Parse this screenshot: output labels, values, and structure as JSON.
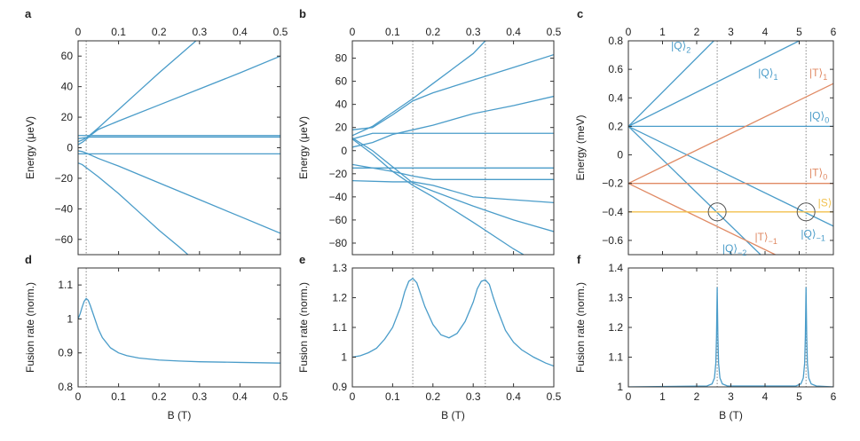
{
  "colors": {
    "blue": "#4a9cc9",
    "orange": "#e08a64",
    "yellow": "#f2c14e",
    "axis": "#333333",
    "guide": "#888888"
  },
  "chart_data": [
    {
      "id": "a",
      "panel_letter": "a",
      "type": "line",
      "ylabel": "Energy (μeV)",
      "xlim": [
        0,
        0.5
      ],
      "ylim": [
        -70,
        70
      ],
      "xticks": [
        0,
        0.1,
        0.2,
        0.3,
        0.4,
        0.5
      ],
      "xtick_labels": [
        "0",
        "0.1",
        "0.2",
        "0.3",
        "0.4",
        "0.5"
      ],
      "xticks_top": true,
      "yticks": [
        -60,
        -40,
        -20,
        0,
        20,
        40,
        60
      ],
      "ytick_labels": [
        "−60",
        "−40",
        "−20",
        "0",
        "20",
        "40",
        "60"
      ],
      "guides": [
        0.02
      ],
      "series": [
        {
          "name": "upper steep",
          "color": "blue",
          "x": [
            0,
            0.01,
            0.02,
            0.03,
            0.05,
            0.1,
            0.15,
            0.2,
            0.25,
            0.3
          ],
          "y": [
            4,
            5,
            6.5,
            8.5,
            13,
            25,
            37,
            49,
            60.5,
            72
          ]
        },
        {
          "name": "upper shallow",
          "color": "blue",
          "x": [
            0,
            0.01,
            0.02,
            0.03,
            0.05,
            0.1,
            0.2,
            0.3,
            0.4,
            0.5
          ],
          "y": [
            2,
            3.5,
            5.5,
            8,
            12,
            17.5,
            28,
            38.5,
            49,
            60
          ]
        },
        {
          "name": "flat 8",
          "color": "blue",
          "x": [
            0,
            0.5
          ],
          "y": [
            8,
            8
          ]
        },
        {
          "name": "flat 6",
          "color": "blue",
          "x": [
            0,
            0.03,
            0.5
          ],
          "y": [
            6,
            7,
            7
          ]
        },
        {
          "name": "flat -4",
          "color": "blue",
          "x": [
            0,
            0.5
          ],
          "y": [
            -4,
            -4
          ]
        },
        {
          "name": "lower shallow",
          "color": "blue",
          "x": [
            0,
            0.01,
            0.02,
            0.05,
            0.1,
            0.2,
            0.3,
            0.4,
            0.5
          ],
          "y": [
            -2,
            -2.5,
            -3.5,
            -7,
            -12,
            -23,
            -34,
            -45,
            -56
          ]
        },
        {
          "name": "lower steep",
          "color": "blue",
          "x": [
            0,
            0.01,
            0.02,
            0.05,
            0.1,
            0.15,
            0.2,
            0.25,
            0.28
          ],
          "y": [
            -10,
            -11,
            -13,
            -19,
            -30,
            -42,
            -54,
            -65,
            -72
          ]
        }
      ]
    },
    {
      "id": "b",
      "panel_letter": "b",
      "type": "line",
      "ylabel": "Energy (μeV)",
      "xlim": [
        0,
        0.5
      ],
      "ylim": [
        -90,
        95
      ],
      "xticks": [
        0,
        0.1,
        0.2,
        0.3,
        0.4,
        0.5
      ],
      "xtick_labels": [
        "0",
        "0.1",
        "0.2",
        "0.3",
        "0.4",
        "0.5"
      ],
      "xticks_top": true,
      "yticks": [
        -80,
        -60,
        -40,
        -20,
        0,
        20,
        40,
        60,
        80
      ],
      "ytick_labels": [
        "−80",
        "−60",
        "−40",
        "−20",
        "0",
        "20",
        "40",
        "60",
        "80"
      ],
      "guides": [
        0.15,
        0.33
      ],
      "series": [
        {
          "name": "steep up",
          "color": "blue",
          "x": [
            0,
            0.05,
            0.1,
            0.15,
            0.2,
            0.25,
            0.3,
            0.33
          ],
          "y": [
            13,
            21,
            33,
            45,
            58,
            71,
            84,
            95
          ]
        },
        {
          "name": "mid up",
          "color": "blue",
          "x": [
            0,
            0.05,
            0.1,
            0.15,
            0.2,
            0.3,
            0.4,
            0.5
          ],
          "y": [
            18,
            20,
            31,
            43,
            50,
            61,
            72,
            83
          ]
        },
        {
          "name": "low up",
          "color": "blue",
          "x": [
            0,
            0.05,
            0.1,
            0.15,
            0.2,
            0.3,
            0.4,
            0.5
          ],
          "y": [
            3,
            7,
            14,
            18,
            22,
            32,
            39,
            47
          ]
        },
        {
          "name": "flat 15",
          "color": "blue",
          "x": [
            0,
            0.05,
            0.5
          ],
          "y": [
            10,
            15,
            15
          ]
        },
        {
          "name": "flat -15",
          "color": "blue",
          "x": [
            0,
            0.5
          ],
          "y": [
            -15,
            -15
          ]
        },
        {
          "name": "branch -25",
          "color": "blue",
          "x": [
            0,
            0.1,
            0.15,
            0.2,
            0.3,
            0.5
          ],
          "y": [
            -12,
            -18,
            -22,
            -25,
            -25,
            -25
          ]
        },
        {
          "name": "flat -27",
          "color": "blue",
          "x": [
            0,
            0.1,
            0.15,
            0.2,
            0.3,
            0.5
          ],
          "y": [
            -26,
            -27,
            -27,
            -30,
            -40,
            -45
          ]
        },
        {
          "name": "down mid",
          "color": "blue",
          "x": [
            0,
            0.05,
            0.1,
            0.15,
            0.2,
            0.3,
            0.4,
            0.5
          ],
          "y": [
            11,
            0,
            -14,
            -28,
            -35,
            -48,
            -60,
            -70
          ]
        },
        {
          "name": "down steep",
          "color": "blue",
          "x": [
            0,
            0.05,
            0.1,
            0.15,
            0.2,
            0.3,
            0.4,
            0.45
          ],
          "y": [
            10,
            -3,
            -18,
            -30,
            -40,
            -62,
            -85,
            -95
          ]
        }
      ]
    },
    {
      "id": "c",
      "panel_letter": "c",
      "type": "line",
      "ylabel": "Energy (meV)",
      "xlim": [
        0,
        6
      ],
      "ylim": [
        -0.7,
        0.8
      ],
      "xticks": [
        0,
        1,
        2,
        3,
        4,
        5,
        6
      ],
      "xtick_labels": [
        "0",
        "1",
        "2",
        "3",
        "4",
        "5",
        "6"
      ],
      "xticks_top": true,
      "yticks": [
        -0.6,
        -0.4,
        -0.2,
        0,
        0.2,
        0.4,
        0.6,
        0.8
      ],
      "ytick_labels": [
        "−0.6",
        "−0.4",
        "−0.2",
        "0",
        "0.2",
        "0.4",
        "0.6",
        "0.8"
      ],
      "guides": [
        2.6,
        5.2
      ],
      "circles": [
        [
          2.6,
          -0.4
        ],
        [
          5.2,
          -0.4
        ]
      ],
      "series": [
        {
          "name": "|Q⟩2",
          "color": "blue",
          "x": [
            0,
            2.5
          ],
          "y": [
            0.2,
            0.8
          ]
        },
        {
          "name": "|Q⟩1",
          "color": "blue",
          "x": [
            0,
            5
          ],
          "y": [
            0.2,
            0.8
          ]
        },
        {
          "name": "|Q⟩0",
          "color": "blue",
          "x": [
            0,
            6
          ],
          "y": [
            0.2,
            0.2
          ]
        },
        {
          "name": "|Q⟩−1",
          "color": "blue",
          "x": [
            0,
            6
          ],
          "y": [
            0.2,
            -0.5
          ]
        },
        {
          "name": "|Q⟩−2",
          "color": "blue",
          "x": [
            0,
            4.3
          ],
          "y": [
            0.2,
            -0.8
          ]
        },
        {
          "name": "|T⟩1",
          "color": "orange",
          "x": [
            0,
            6
          ],
          "y": [
            -0.2,
            0.5
          ]
        },
        {
          "name": "|T⟩0",
          "color": "orange",
          "x": [
            0,
            6
          ],
          "y": [
            -0.2,
            -0.2
          ]
        },
        {
          "name": "|T⟩−1",
          "color": "orange",
          "x": [
            0,
            4.3
          ],
          "y": [
            -0.2,
            -0.7
          ]
        },
        {
          "name": "|S⟩",
          "color": "yellow",
          "x": [
            0,
            6
          ],
          "y": [
            -0.4,
            -0.4
          ]
        }
      ],
      "state_labels": [
        {
          "main": "|Q⟩",
          "sub": "2",
          "x": 1.25,
          "y": 0.74,
          "color": "blue"
        },
        {
          "main": "|Q⟩",
          "sub": "1",
          "x": 3.8,
          "y": 0.55,
          "color": "blue"
        },
        {
          "main": "|T⟩",
          "sub": "1",
          "x": 5.3,
          "y": 0.55,
          "color": "orange"
        },
        {
          "main": "|Q⟩",
          "sub": "0",
          "x": 5.3,
          "y": 0.25,
          "color": "blue"
        },
        {
          "main": "|T⟩",
          "sub": "0",
          "x": 5.3,
          "y": -0.15,
          "color": "orange"
        },
        {
          "main": "|S⟩",
          "sub": "",
          "x": 5.55,
          "y": -0.36,
          "color": "yellow"
        },
        {
          "main": "|Q⟩",
          "sub": "−1",
          "x": 5.05,
          "y": -0.58,
          "color": "blue"
        },
        {
          "main": "|T⟩",
          "sub": "−1",
          "x": 3.7,
          "y": -0.6,
          "color": "orange"
        },
        {
          "main": "|Q⟩",
          "sub": "−2",
          "x": 2.75,
          "y": -0.68,
          "color": "blue"
        }
      ]
    },
    {
      "id": "d",
      "panel_letter": "d",
      "type": "line",
      "ylabel": "Fusion rate (norm.)",
      "xlabel": "B (T)",
      "xlim": [
        0,
        0.5
      ],
      "ylim": [
        0.8,
        1.15
      ],
      "xticks": [
        0,
        0.1,
        0.2,
        0.3,
        0.4,
        0.5
      ],
      "xtick_labels": [
        "0",
        "0.1",
        "0.2",
        "0.3",
        "0.4",
        "0.5"
      ],
      "yticks": [
        0.8,
        0.9,
        1,
        1.1
      ],
      "ytick_labels": [
        "0.8",
        "0.9",
        "1",
        "1.1"
      ],
      "guides": [
        0.02
      ],
      "series": [
        {
          "name": "fusion rate",
          "color": "blue",
          "x": [
            0,
            0.005,
            0.01,
            0.015,
            0.02,
            0.025,
            0.03,
            0.04,
            0.05,
            0.06,
            0.08,
            0.1,
            0.12,
            0.15,
            0.2,
            0.25,
            0.3,
            0.35,
            0.4,
            0.45,
            0.5
          ],
          "y": [
            1.0,
            1.015,
            1.035,
            1.052,
            1.06,
            1.055,
            1.04,
            1.005,
            0.97,
            0.945,
            0.915,
            0.9,
            0.892,
            0.885,
            0.879,
            0.876,
            0.874,
            0.873,
            0.872,
            0.871,
            0.87
          ]
        }
      ]
    },
    {
      "id": "e",
      "panel_letter": "e",
      "type": "line",
      "ylabel": "Fusion rate (norm.)",
      "xlabel": "B (T)",
      "xlim": [
        0,
        0.5
      ],
      "ylim": [
        0.9,
        1.3
      ],
      "xticks": [
        0,
        0.1,
        0.2,
        0.3,
        0.4,
        0.5
      ],
      "xtick_labels": [
        "0",
        "0.1",
        "0.2",
        "0.3",
        "0.4",
        "0.5"
      ],
      "yticks": [
        0.9,
        1,
        1.1,
        1.2,
        1.3
      ],
      "ytick_labels": [
        "0.9",
        "1",
        "1.1",
        "1.2",
        "1.3"
      ],
      "guides": [
        0.15,
        0.33
      ],
      "series": [
        {
          "name": "fusion rate",
          "color": "blue",
          "x": [
            0,
            0.02,
            0.04,
            0.06,
            0.08,
            0.1,
            0.12,
            0.13,
            0.14,
            0.15,
            0.16,
            0.17,
            0.18,
            0.2,
            0.22,
            0.24,
            0.26,
            0.28,
            0.3,
            0.31,
            0.32,
            0.33,
            0.34,
            0.35,
            0.36,
            0.38,
            0.4,
            0.42,
            0.45,
            0.48,
            0.5
          ],
          "y": [
            1.0,
            1.005,
            1.015,
            1.03,
            1.06,
            1.1,
            1.17,
            1.22,
            1.255,
            1.265,
            1.25,
            1.21,
            1.17,
            1.11,
            1.075,
            1.065,
            1.08,
            1.12,
            1.185,
            1.23,
            1.255,
            1.26,
            1.245,
            1.2,
            1.16,
            1.09,
            1.05,
            1.025,
            1.0,
            0.98,
            0.97
          ]
        }
      ]
    },
    {
      "id": "f",
      "panel_letter": "f",
      "type": "line",
      "ylabel": "Fusion rate (norm.)",
      "xlabel": "B (T)",
      "xlim": [
        0,
        6
      ],
      "ylim": [
        1,
        1.4
      ],
      "xticks": [
        0,
        1,
        2,
        3,
        4,
        5,
        6
      ],
      "xtick_labels": [
        "0",
        "1",
        "2",
        "3",
        "4",
        "5",
        "6"
      ],
      "yticks": [
        1,
        1.1,
        1.2,
        1.3,
        1.4
      ],
      "ytick_labels": [
        "1",
        "1.1",
        "1.2",
        "1.3",
        "1.4"
      ],
      "guides": [
        2.6,
        5.2
      ],
      "series": [
        {
          "name": "fusion rate",
          "color": "blue",
          "x": [
            0,
            2.3,
            2.45,
            2.52,
            2.56,
            2.58,
            2.6,
            2.62,
            2.64,
            2.68,
            2.75,
            2.9,
            4.9,
            5.05,
            5.12,
            5.16,
            5.18,
            5.2,
            5.22,
            5.24,
            5.28,
            5.35,
            5.5,
            6
          ],
          "y": [
            1.0,
            1.003,
            1.01,
            1.03,
            1.08,
            1.17,
            1.335,
            1.17,
            1.08,
            1.03,
            1.01,
            1.003,
            1.003,
            1.01,
            1.03,
            1.08,
            1.17,
            1.335,
            1.17,
            1.08,
            1.03,
            1.01,
            1.003,
            1.0
          ]
        }
      ]
    }
  ]
}
